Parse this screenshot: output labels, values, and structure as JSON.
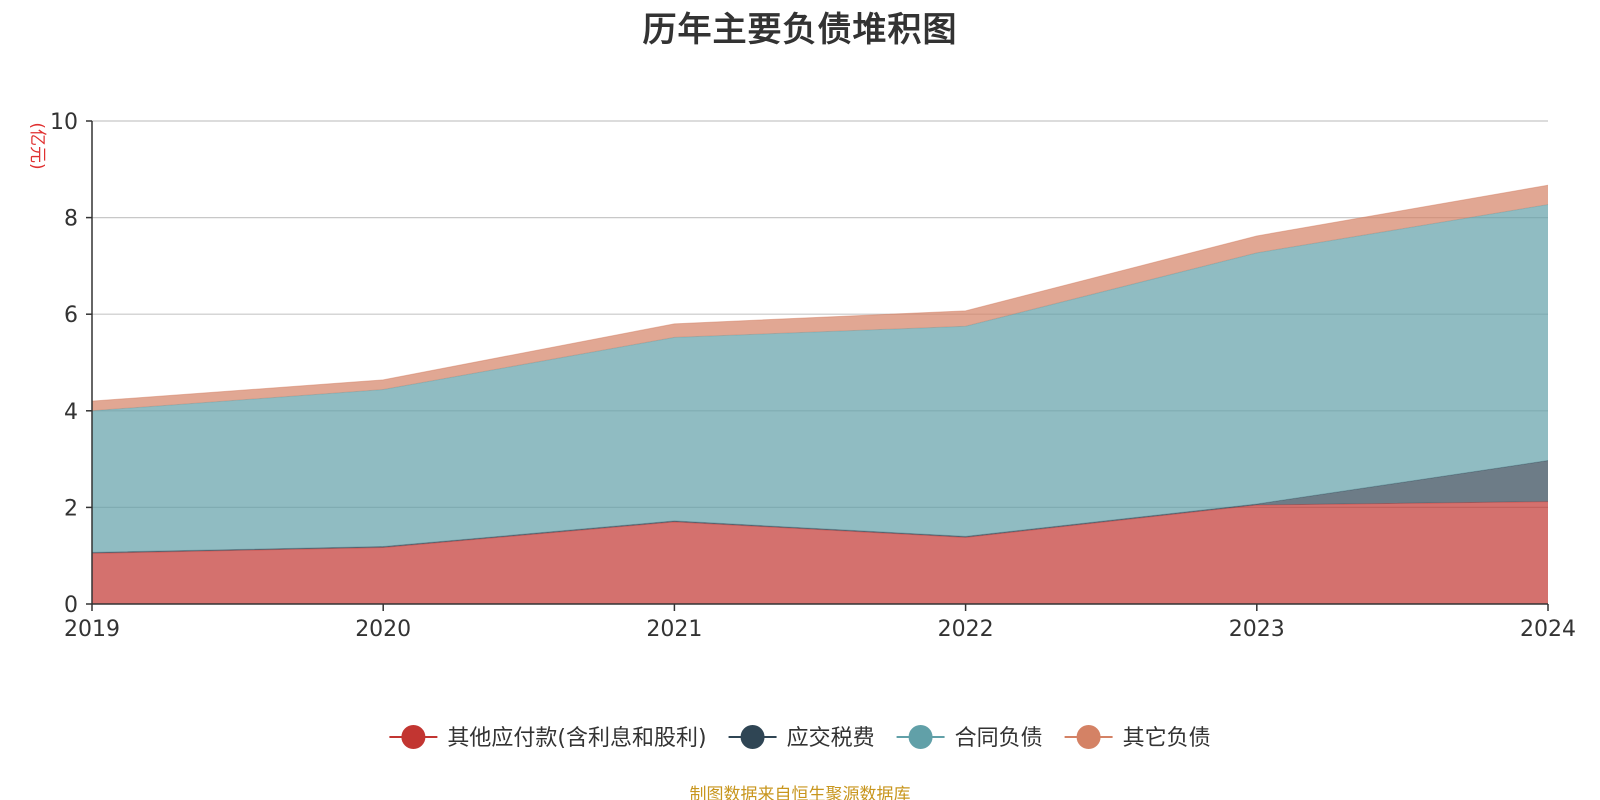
{
  "chart_data": {
    "type": "area",
    "stacked": true,
    "title": "历年主要负债堆积图",
    "unit_label": "(亿元)",
    "x": [
      "2019",
      "2020",
      "2021",
      "2022",
      "2023",
      "2024"
    ],
    "ylim": [
      0,
      10
    ],
    "yticks": [
      "0",
      "2",
      "4",
      "6",
      "8",
      "10"
    ],
    "grid": true,
    "legend_position": "bottom",
    "series": [
      {
        "name": "其他应付款(含利息和股利)",
        "color": "#c23531",
        "values": [
          1.05,
          1.17,
          1.7,
          1.38,
          2.05,
          2.12
        ]
      },
      {
        "name": "应交税费",
        "color": "#2f4554",
        "values": [
          0.02,
          0.02,
          0.02,
          0.02,
          0.02,
          0.85
        ]
      },
      {
        "name": "合同负债",
        "color": "#61a0a8",
        "values": [
          2.93,
          3.25,
          3.8,
          4.35,
          5.2,
          5.3
        ]
      },
      {
        "name": "其它负债",
        "color": "#d48265",
        "values": [
          0.2,
          0.2,
          0.28,
          0.32,
          0.35,
          0.4
        ]
      }
    ]
  },
  "footer": {
    "source_text": "制图数据来自恒生聚源数据库",
    "source_color": "#c8961e"
  }
}
